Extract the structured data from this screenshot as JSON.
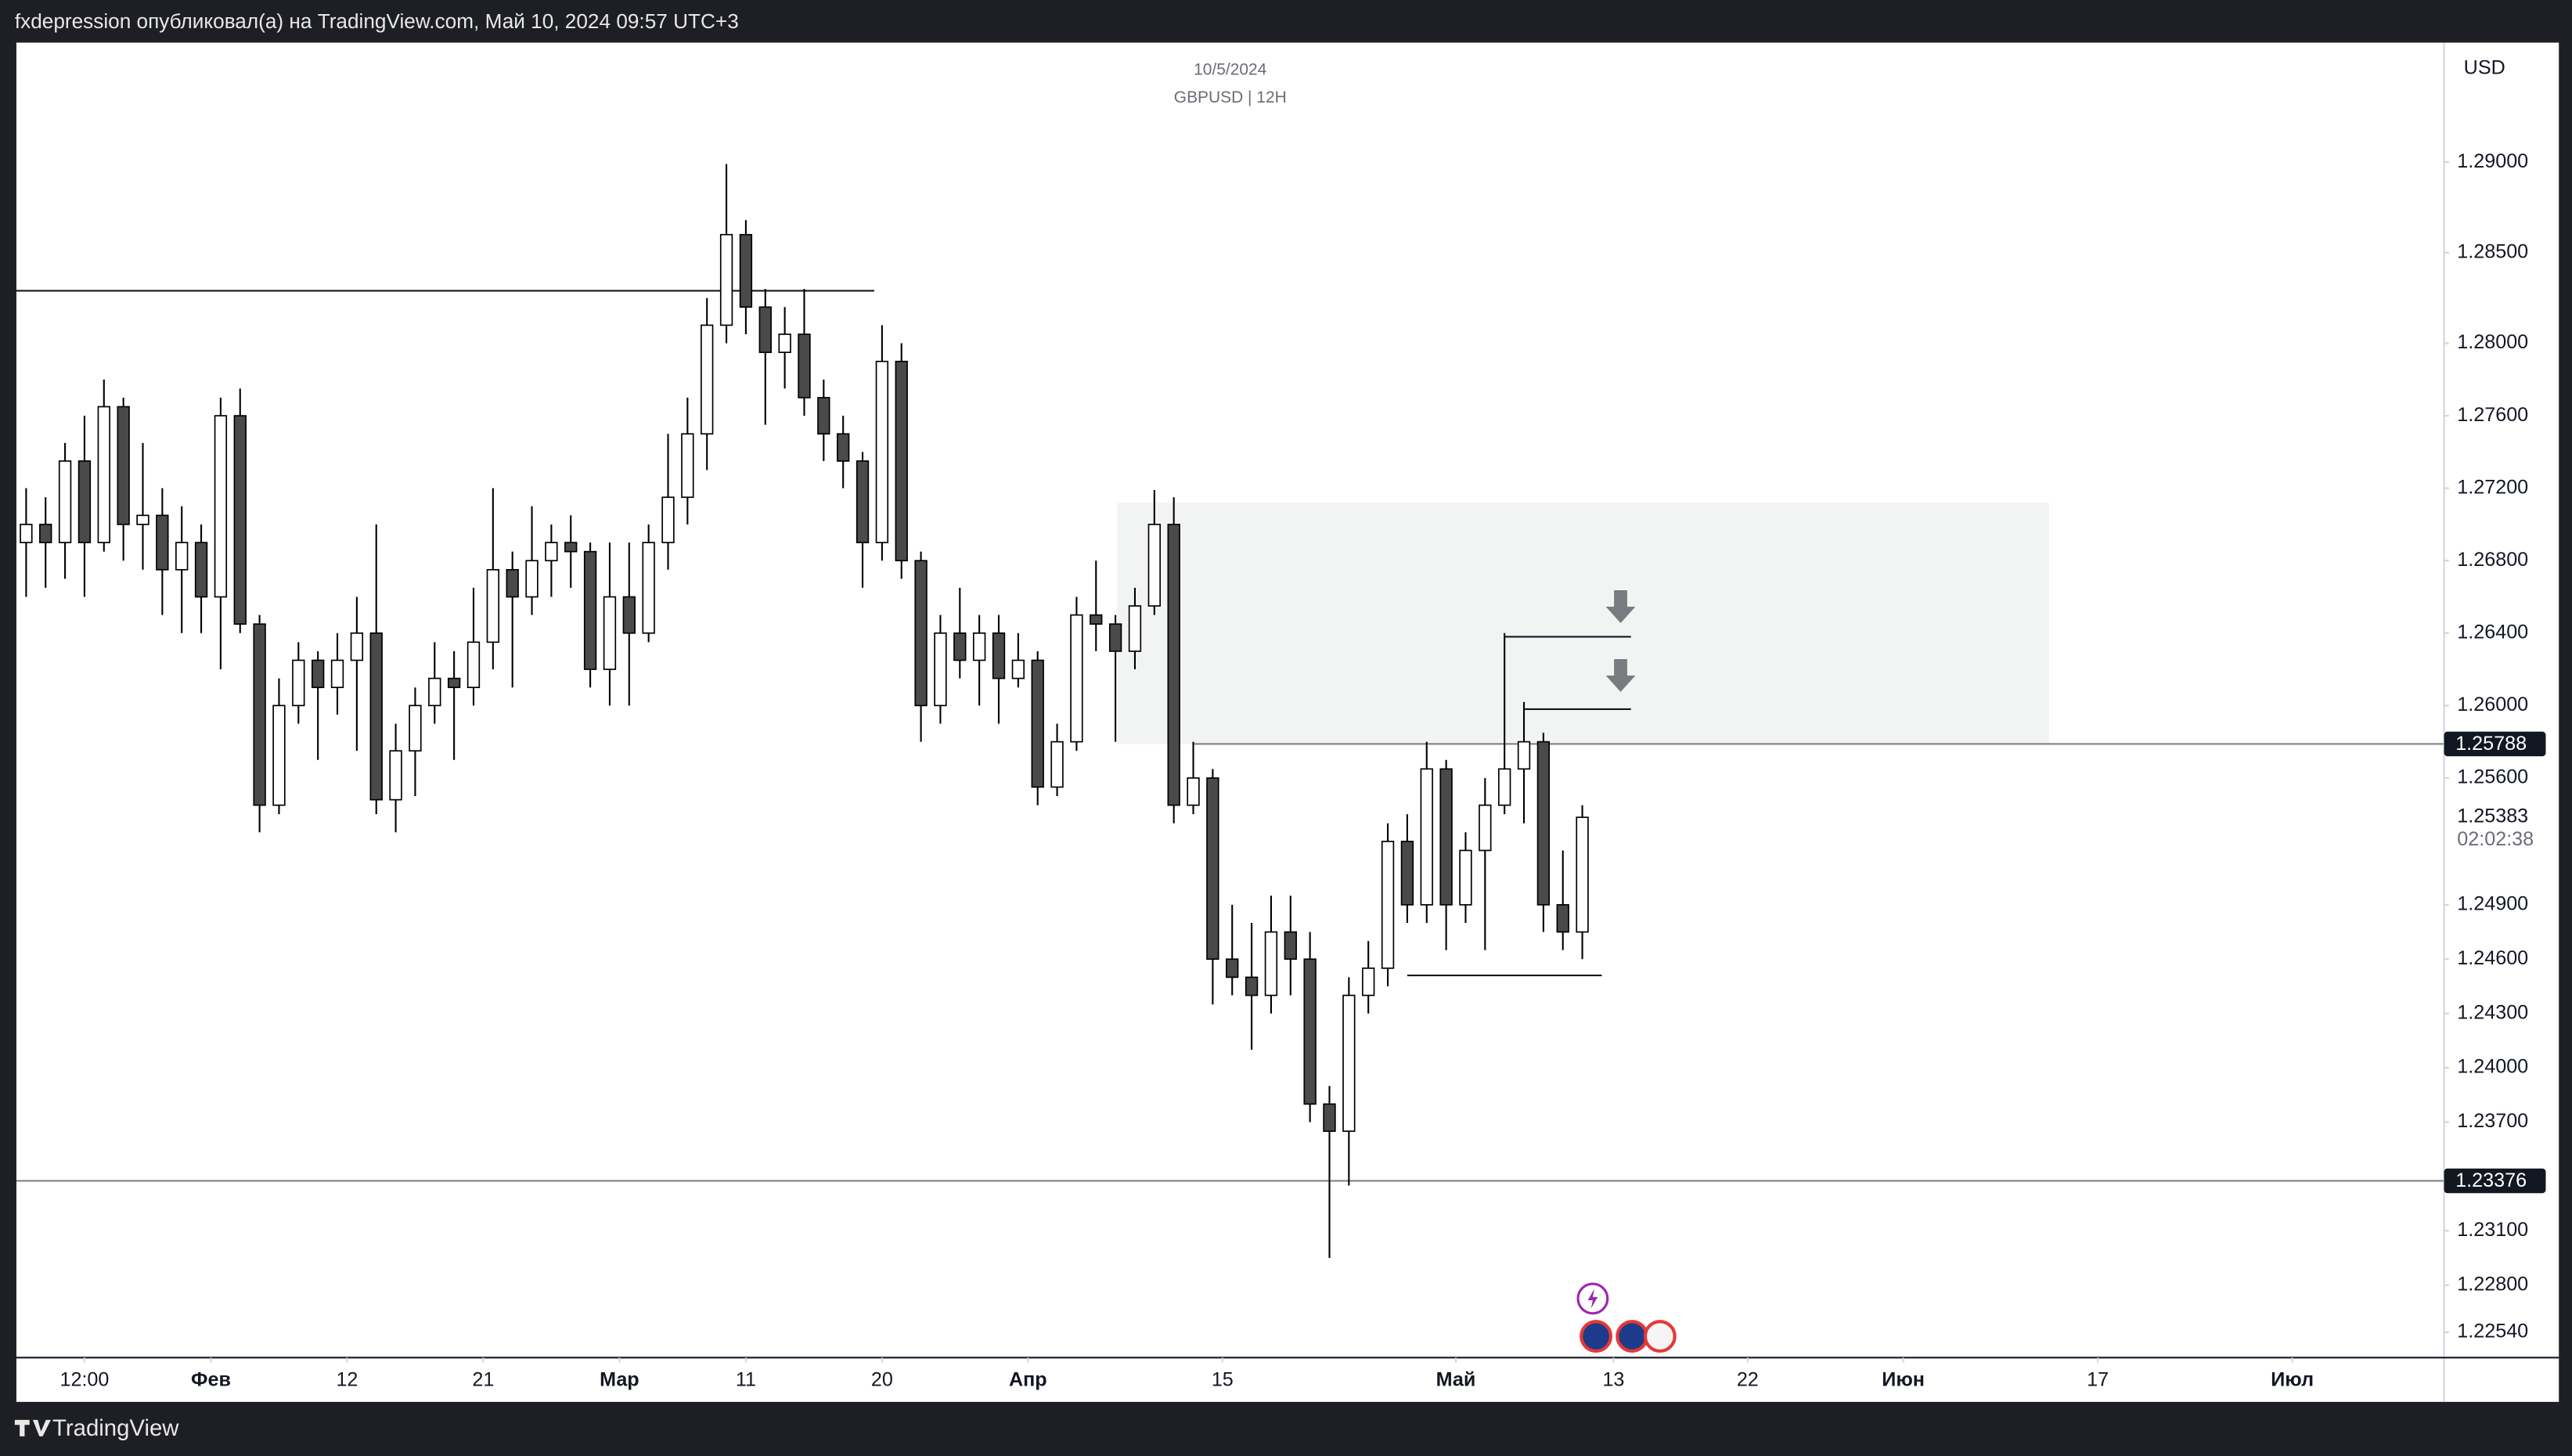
{
  "header": {
    "text": "fxdepression опубликовал(а) на TradingView.com, Май 10, 2024 09:57 UTC+3"
  },
  "footer": {
    "brand": "TradingView"
  },
  "chart_data": {
    "type": "candlestick",
    "title": "GBPUSD | 12H",
    "subtitle": "10/5/2024",
    "currency": "USD",
    "countdown": "02:02:38",
    "up_color": "#ffffff",
    "down_color": "#4a4a4a",
    "wick_color": "#000000",
    "grid": false,
    "open": [
      1.269,
      1.27,
      1.269,
      1.2735,
      1.269,
      1.2765,
      1.27,
      1.2705,
      1.2675,
      1.269,
      1.266,
      1.276,
      1.2645,
      1.2545,
      1.26,
      1.2625,
      1.261,
      1.2625,
      1.264,
      1.2548,
      1.2575,
      1.26,
      1.2615,
      1.261,
      1.2635,
      1.2675,
      1.266,
      1.268,
      1.269,
      1.2685,
      1.262,
      1.266,
      1.264,
      1.269,
      1.2715,
      1.275,
      1.281,
      1.286,
      1.282,
      1.2795,
      1.2805,
      1.277,
      1.275,
      1.2735,
      1.269,
      1.279,
      1.268,
      1.26,
      1.264,
      1.2625,
      1.264,
      1.2615,
      1.2625,
      1.2555,
      1.258,
      1.265,
      1.2645,
      1.263,
      1.2655,
      1.27,
      1.2545,
      1.256,
      1.246,
      1.245,
      1.244,
      1.2475,
      1.246,
      1.238,
      1.2365,
      1.244,
      1.2455,
      1.2525,
      1.249,
      1.2565,
      1.249,
      1.252,
      1.2545,
      1.2565,
      1.258,
      1.249,
      1.2475
    ],
    "high": [
      1.272,
      1.2715,
      1.2745,
      1.276,
      1.278,
      1.277,
      1.2745,
      1.272,
      1.271,
      1.27,
      1.277,
      1.2775,
      1.265,
      1.2615,
      1.2635,
      1.263,
      1.264,
      1.266,
      1.27,
      1.259,
      1.261,
      1.2635,
      1.263,
      1.2665,
      1.272,
      1.2685,
      1.271,
      1.27,
      1.2705,
      1.269,
      1.269,
      1.269,
      1.27,
      1.275,
      1.277,
      1.2825,
      1.2899,
      1.2868,
      1.283,
      1.282,
      1.283,
      1.278,
      1.276,
      1.274,
      1.281,
      1.28,
      1.2685,
      1.265,
      1.2665,
      1.265,
      1.265,
      1.264,
      1.263,
      1.259,
      1.266,
      1.268,
      1.265,
      1.2665,
      1.2719,
      1.2715,
      1.258,
      1.2565,
      1.249,
      1.248,
      1.2495,
      1.2495,
      1.2475,
      1.239,
      1.245,
      1.247,
      1.2535,
      1.254,
      1.258,
      1.257,
      1.253,
      1.256,
      1.264,
      1.2602,
      1.2585,
      1.252,
      1.2545
    ],
    "low": [
      1.266,
      1.2665,
      1.267,
      1.266,
      1.2685,
      1.268,
      1.2675,
      1.265,
      1.264,
      1.264,
      1.262,
      1.264,
      1.253,
      1.254,
      1.259,
      1.257,
      1.2595,
      1.2575,
      1.254,
      1.253,
      1.255,
      1.259,
      1.257,
      1.26,
      1.262,
      1.261,
      1.265,
      1.266,
      1.2665,
      1.261,
      1.26,
      1.26,
      1.2635,
      1.2675,
      1.27,
      1.273,
      1.28,
      1.2805,
      1.2755,
      1.2775,
      1.276,
      1.2735,
      1.272,
      1.2665,
      1.268,
      1.267,
      1.258,
      1.259,
      1.2615,
      1.26,
      1.259,
      1.261,
      1.2545,
      1.255,
      1.2575,
      1.263,
      1.258,
      1.262,
      1.265,
      1.2535,
      1.254,
      1.2435,
      1.244,
      1.241,
      1.243,
      1.244,
      1.237,
      1.2295,
      1.2335,
      1.243,
      1.2445,
      1.248,
      1.248,
      1.2465,
      1.248,
      1.2465,
      1.254,
      1.2535,
      1.2475,
      1.2465,
      1.246
    ],
    "close": [
      1.27,
      1.269,
      1.2735,
      1.269,
      1.2765,
      1.27,
      1.2705,
      1.2675,
      1.269,
      1.266,
      1.276,
      1.2645,
      1.2545,
      1.26,
      1.2625,
      1.261,
      1.2625,
      1.264,
      1.2548,
      1.2575,
      1.26,
      1.2615,
      1.261,
      1.2635,
      1.2675,
      1.266,
      1.268,
      1.269,
      1.2685,
      1.262,
      1.266,
      1.264,
      1.269,
      1.2715,
      1.275,
      1.281,
      1.286,
      1.282,
      1.2795,
      1.2805,
      1.277,
      1.275,
      1.2735,
      1.269,
      1.279,
      1.268,
      1.26,
      1.264,
      1.2625,
      1.264,
      1.2615,
      1.2625,
      1.2555,
      1.258,
      1.265,
      1.2645,
      1.263,
      1.2655,
      1.27,
      1.2545,
      1.256,
      1.246,
      1.245,
      1.244,
      1.2475,
      1.246,
      1.238,
      1.2365,
      1.244,
      1.2455,
      1.2525,
      1.249,
      1.2565,
      1.249,
      1.252,
      1.2545,
      1.2565,
      1.258,
      1.249,
      1.2475,
      1.25383
    ],
    "xlim": [
      -0.5,
      124.3
    ],
    "xticks": [
      {
        "value": 3.0,
        "label": "12:00"
      },
      {
        "value": 9.5,
        "label": "Фев",
        "major": true
      },
      {
        "value": 16.5,
        "label": "12"
      },
      {
        "value": 23.5,
        "label": "21"
      },
      {
        "value": 30.5,
        "label": "Мар",
        "major": true
      },
      {
        "value": 37.0,
        "label": "11"
      },
      {
        "value": 44.0,
        "label": "20"
      },
      {
        "value": 51.5,
        "label": "Апр",
        "major": true
      },
      {
        "value": 61.5,
        "label": "15"
      },
      {
        "value": 73.5,
        "label": "Май",
        "major": true
      },
      {
        "value": 81.6,
        "label": "13"
      },
      {
        "value": 88.5,
        "label": "22"
      },
      {
        "value": 96.5,
        "label": "Июн",
        "major": true
      },
      {
        "value": 106.5,
        "label": "17"
      },
      {
        "value": 116.5,
        "label": "Июл",
        "major": true
      }
    ],
    "ylim": [
      1.224,
      1.2966
    ],
    "yticks": [
      {
        "value": 1.29,
        "label": "1.29000"
      },
      {
        "value": 1.285,
        "label": "1.28500"
      },
      {
        "value": 1.28,
        "label": "1.28000"
      },
      {
        "value": 1.276,
        "label": "1.27600"
      },
      {
        "value": 1.272,
        "label": "1.27200"
      },
      {
        "value": 1.268,
        "label": "1.26800"
      },
      {
        "value": 1.264,
        "label": "1.26400"
      },
      {
        "value": 1.26,
        "label": "1.26000"
      },
      {
        "value": 1.256,
        "label": "1.25600"
      },
      {
        "value": 1.249,
        "label": "1.24900"
      },
      {
        "value": 1.246,
        "label": "1.24600"
      },
      {
        "value": 1.243,
        "label": "1.24300"
      },
      {
        "value": 1.24,
        "label": "1.24000"
      },
      {
        "value": 1.237,
        "label": "1.23700"
      },
      {
        "value": 1.231,
        "label": "1.23100"
      },
      {
        "value": 1.228,
        "label": "1.22800"
      },
      {
        "value": 1.2254,
        "label": "1.22540"
      }
    ],
    "levels": [
      {
        "value": 1.2829,
        "from": -0.5,
        "to": 43.6
      },
      {
        "value": 1.25788,
        "from": 60,
        "show_price_label": true
      },
      {
        "value": 1.23376,
        "from": -0.5,
        "show_price_label": true
      },
      {
        "value": 1.2638,
        "from": 76,
        "to": 82.5
      },
      {
        "value": 1.2598,
        "from": 77,
        "to": 82.5
      },
      {
        "value": 1.2451,
        "from": 71,
        "to": 81.0
      }
    ],
    "zone": {
      "top": 1.2712,
      "bottom": 1.25788,
      "from": 56.1,
      "to": 104.0,
      "color": "#f2f3f3"
    }
  }
}
